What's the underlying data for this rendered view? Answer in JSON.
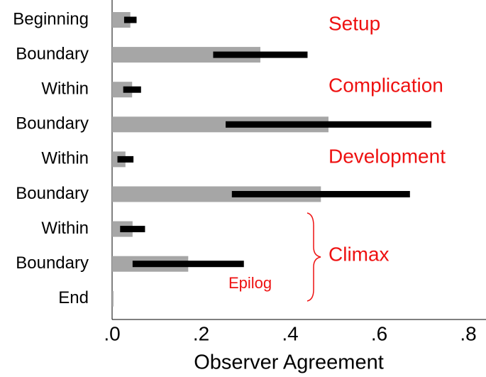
{
  "chart_data": {
    "type": "bar",
    "orientation": "horizontal",
    "x_label": "Observer Agreement",
    "categories": [
      "Beginning",
      "Boundary",
      "Within",
      "Boundary",
      "Within",
      "Boundary",
      "Within",
      "Boundary",
      "End"
    ],
    "values": [
      0.041,
      0.333,
      0.045,
      0.486,
      0.03,
      0.469,
      0.046,
      0.171,
      0.003
    ],
    "errors": [
      0.014,
      0.106,
      0.02,
      0.231,
      0.018,
      0.2,
      0.028,
      0.125,
      null
    ],
    "color": "#a6a6a6",
    "error_color": "#000000",
    "xlim": [
      0,
      0.8
    ],
    "xticks": [
      {
        "value": 0,
        "label": ".0"
      },
      {
        "value": 0.2,
        "label": ".2"
      },
      {
        "value": 0.4,
        "label": ".4"
      },
      {
        "value": 0.6,
        "label": ".6"
      },
      {
        "value": 0.8,
        "label": ".8"
      }
    ],
    "annotations": [
      "Setup",
      "Complication",
      "Development",
      "Climax",
      "Epilog"
    ],
    "annotation_color": "#ee1111"
  }
}
